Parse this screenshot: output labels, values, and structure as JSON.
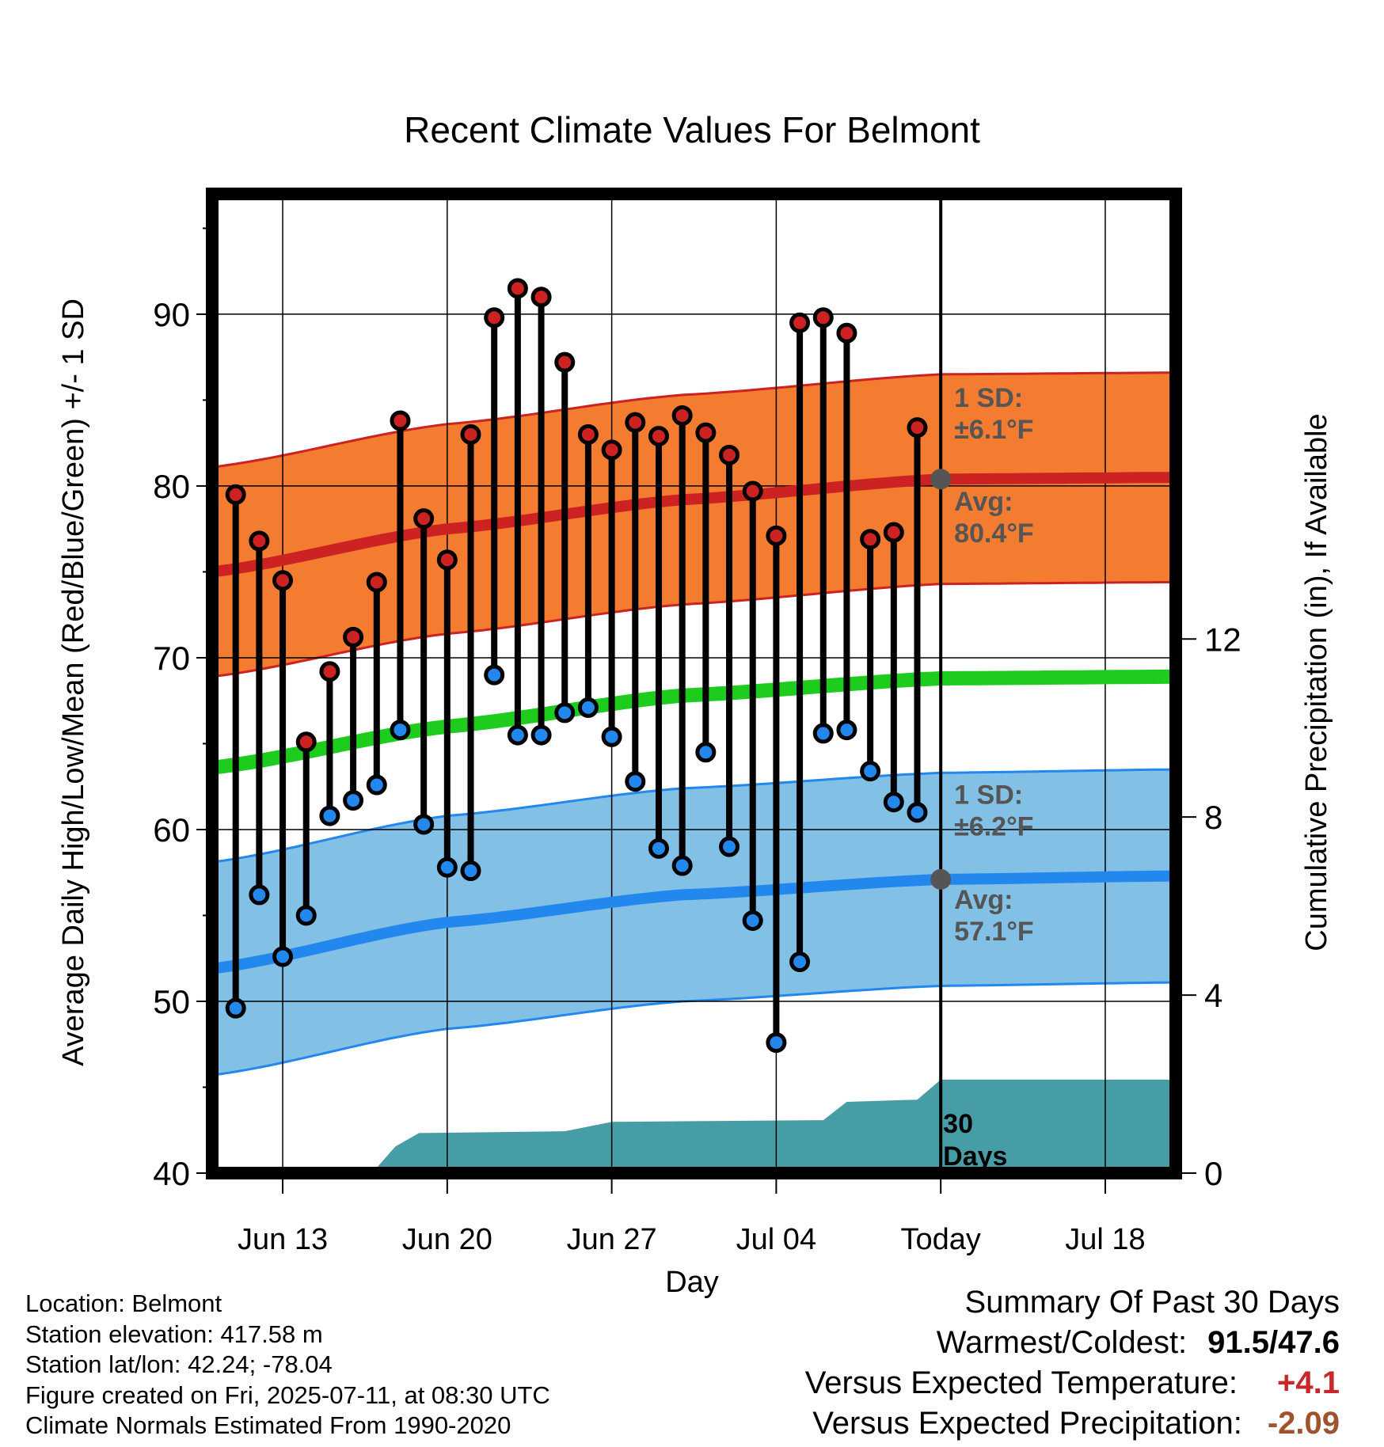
{
  "chart_data": {
    "type": "line",
    "title": "Recent Climate Values For Belmont",
    "xlabel": "Day",
    "ylabel_left": "Average Daily High/Low/Mean (Red/Blue/Green) +/- 1 SD",
    "ylabel_right": "Cumulative Precipitation (in), If Available",
    "ylim_left": [
      40,
      97
    ],
    "ylim_right": [
      0,
      22
    ],
    "x_range": [
      "Jun 10",
      "Jul 21"
    ],
    "x_ticks": [
      {
        "day": 3,
        "label": "Jun 13"
      },
      {
        "day": 10,
        "label": "Jun 20"
      },
      {
        "day": 17,
        "label": "Jun 27"
      },
      {
        "day": 24,
        "label": "Jul 04"
      },
      {
        "day": 31,
        "label": "Today"
      },
      {
        "day": 38,
        "label": "Jul 18"
      }
    ],
    "y_ticks_left": [
      40,
      50,
      60,
      70,
      80,
      90
    ],
    "y_ticks_right": [
      0,
      4,
      8,
      12
    ],
    "grid": true,
    "days": [
      1,
      2,
      3,
      4,
      5,
      6,
      7,
      8,
      9,
      10,
      11,
      12,
      13,
      14,
      15,
      16,
      17,
      18,
      19,
      20,
      21,
      22,
      23,
      24,
      25,
      26,
      27,
      28,
      29,
      30
    ],
    "highs": [
      79.5,
      76.8,
      74.5,
      65.1,
      69.2,
      71.2,
      74.4,
      83.8,
      78.1,
      75.7,
      83.0,
      89.8,
      91.5,
      91.0,
      87.2,
      83.0,
      82.1,
      83.7,
      82.9,
      84.1,
      83.1,
      81.8,
      79.7,
      77.1,
      89.5,
      89.8,
      88.9,
      76.9,
      77.3,
      83.4
    ],
    "lows": [
      49.6,
      56.2,
      52.6,
      55.0,
      60.8,
      61.7,
      62.6,
      65.8,
      60.3,
      57.8,
      57.6,
      69.0,
      65.5,
      65.5,
      66.8,
      67.1,
      65.4,
      62.8,
      58.9,
      57.9,
      64.5,
      59.0,
      54.7,
      47.6,
      52.3,
      65.6,
      65.8,
      63.4,
      61.6,
      61.0
    ],
    "normal_high": {
      "label": "Avg:",
      "value": "80.4°F",
      "sd_label": "1 SD:",
      "sd_value": "±6.1°F",
      "curve": [
        [
          0,
          75.0
        ],
        [
          10,
          77.5
        ],
        [
          20,
          79.2
        ],
        [
          31,
          80.4
        ],
        [
          41,
          80.5
        ]
      ],
      "sd": 6.1
    },
    "normal_low": {
      "label": "Avg:",
      "value": "57.1°F",
      "sd_label": "1 SD:",
      "sd_value": "±6.2°F",
      "curve": [
        [
          0,
          51.9
        ],
        [
          10,
          54.6
        ],
        [
          20,
          56.2
        ],
        [
          31,
          57.1
        ],
        [
          41,
          57.3
        ]
      ],
      "sd": 6.2
    },
    "normal_mean": {
      "curve": [
        [
          0,
          63.6
        ],
        [
          10,
          66.0
        ],
        [
          20,
          67.8
        ],
        [
          31,
          68.8
        ],
        [
          41,
          68.9
        ]
      ]
    },
    "precip_label": "30 Days",
    "precip_cumulative": [
      [
        6.8,
        0
      ],
      [
        7.8,
        0.6
      ],
      [
        8.8,
        0.9
      ],
      [
        12,
        0.92
      ],
      [
        15,
        0.94
      ],
      [
        17,
        1.15
      ],
      [
        21,
        1.17
      ],
      [
        26,
        1.19
      ],
      [
        27,
        1.6
      ],
      [
        30,
        1.65
      ],
      [
        31,
        2.1
      ],
      [
        41,
        2.1
      ]
    ],
    "today_day": 31,
    "today_marker_temps": [
      80.4,
      57.1
    ],
    "colors": {
      "high": "#cc2222",
      "low": "#2288ee",
      "high_band": "#f47c30",
      "low_band": "#82c0e6",
      "mean": "#1ecc1e",
      "precip": "#479da5",
      "annotation": "#555555"
    }
  },
  "footer": {
    "location": "Location: Belmont",
    "elevation": "Station elevation: 417.58 m",
    "latlon": "Station lat/lon: 42.24; -78.04",
    "created": "Figure created on Fri, 2025-07-11, at 08:30 UTC",
    "normals": "Climate Normals Estimated From 1990-2020"
  },
  "summary": {
    "title": "Summary Of Past 30 Days",
    "warm_cold_label": "Warmest/Coldest:",
    "warm_cold_value": "91.5/47.6",
    "temp_label": "Versus Expected Temperature:",
    "temp_value": "+4.1",
    "precip_label": "Versus Expected Precipitation:",
    "precip_value": "-2.09"
  }
}
